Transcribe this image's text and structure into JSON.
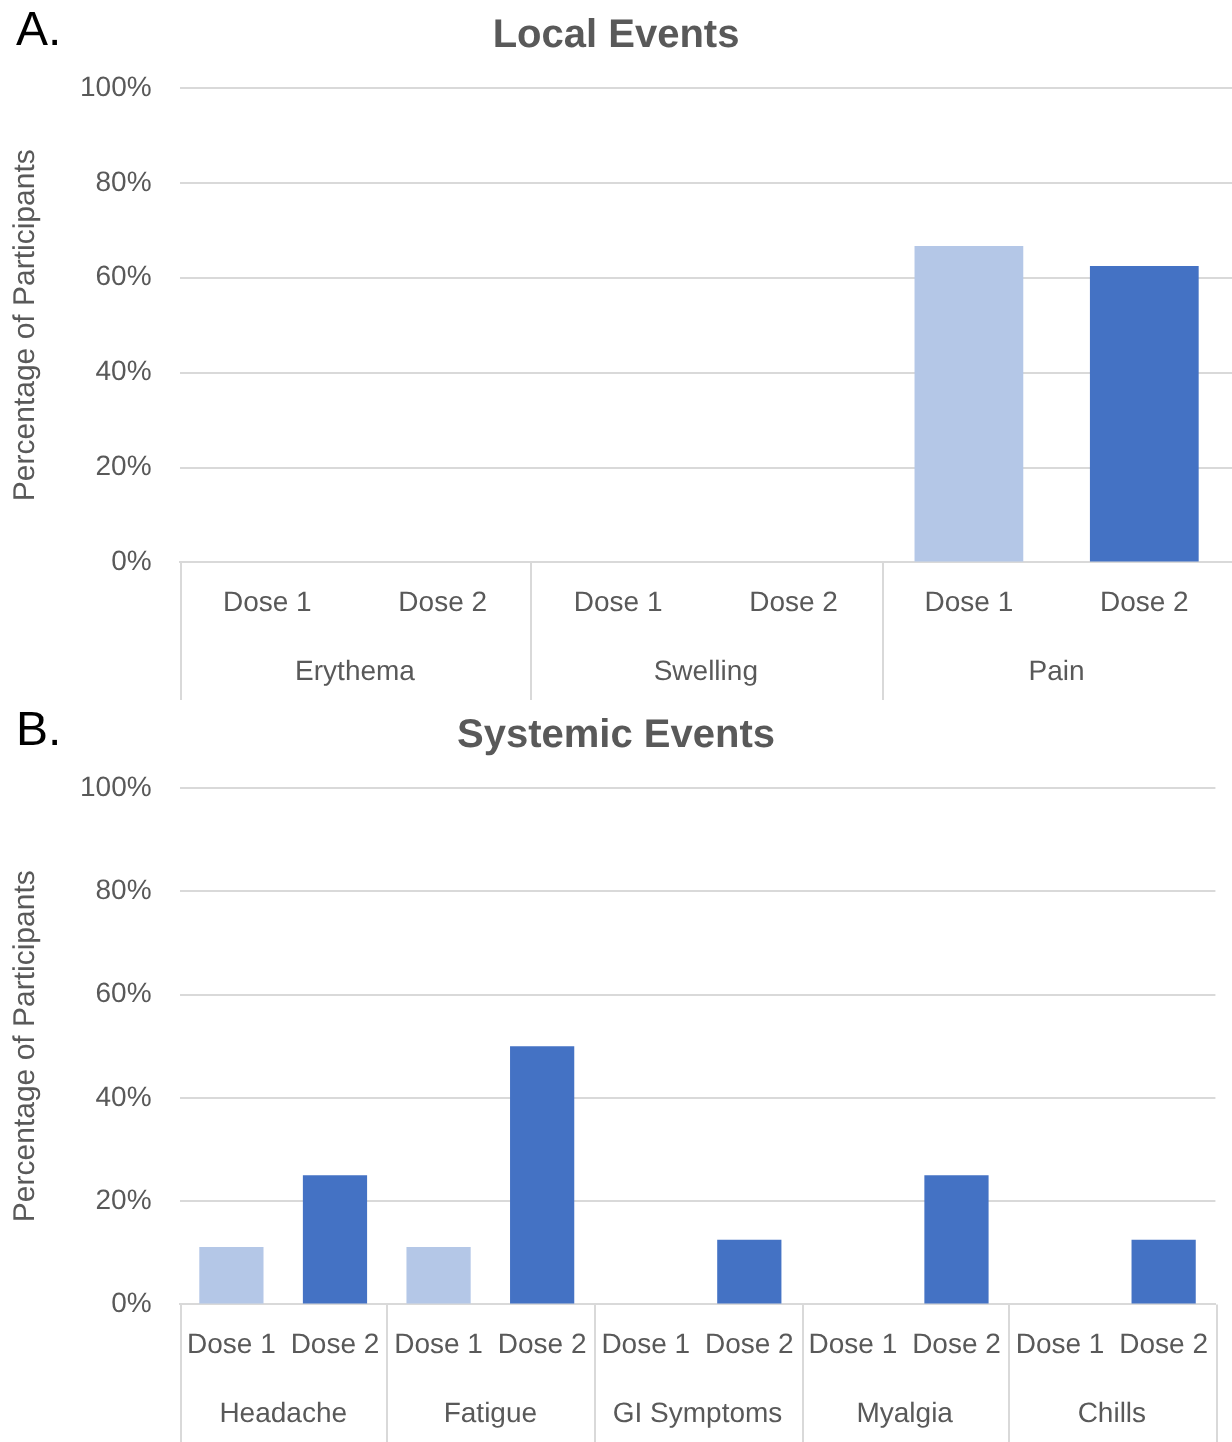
{
  "chart_data": [
    {
      "type": "bar",
      "title": "Local Events",
      "ylabel": "Percentage of Participants",
      "annotations": [
        "A.",
        "Erythema",
        "Swelling",
        "Pain"
      ],
      "categories": [
        "Dose 1",
        "Dose 2",
        "Dose 1",
        "Dose 2",
        "Dose 1",
        "Dose 2"
      ],
      "values": [
        0,
        0,
        0,
        0,
        66.7,
        62.5
      ],
      "colors": [
        "#b4c7e7",
        "#4472c4",
        "#b4c7e7",
        "#4472c4",
        "#b4c7e7",
        "#4472c4"
      ],
      "ylim": [
        0,
        100
      ],
      "yticks": [
        {
          "value": 0,
          "label": "0%"
        },
        {
          "value": 20,
          "label": "20%"
        },
        {
          "value": 40,
          "label": "40%"
        },
        {
          "value": 60,
          "label": "60%"
        },
        {
          "value": 80,
          "label": "80%"
        },
        {
          "value": 100,
          "label": "100%"
        }
      ],
      "grid": "y",
      "legend": false
    },
    {
      "type": "bar",
      "title": "Systemic Events",
      "ylabel": "Percentage of Participants",
      "annotations": [
        "B.",
        "Headache",
        "Fatigue",
        "GI Symptoms",
        "Myalgia",
        "Chills"
      ],
      "categories": [
        "Dose 1",
        "Dose 2",
        "Dose 1",
        "Dose 2",
        "Dose 1",
        "Dose 2",
        "Dose 1",
        "Dose 2",
        "Dose 1",
        "Dose 2"
      ],
      "values": [
        11.1,
        25,
        11.1,
        50,
        0,
        12.5,
        0,
        25,
        0,
        12.5
      ],
      "colors": [
        "#b4c7e7",
        "#4472c4",
        "#b4c7e7",
        "#4472c4",
        "#b4c7e7",
        "#4472c4",
        "#b4c7e7",
        "#4472c4",
        "#b4c7e7",
        "#4472c4"
      ],
      "ylim": [
        0,
        100
      ],
      "yticks": [
        {
          "value": 0,
          "label": "0%"
        },
        {
          "value": 20,
          "label": "20%"
        },
        {
          "value": 40,
          "label": "40%"
        },
        {
          "value": 60,
          "label": "60%"
        },
        {
          "value": 80,
          "label": "80%"
        },
        {
          "value": 100,
          "label": "100%"
        }
      ],
      "grid": "y",
      "legend": false
    }
  ]
}
